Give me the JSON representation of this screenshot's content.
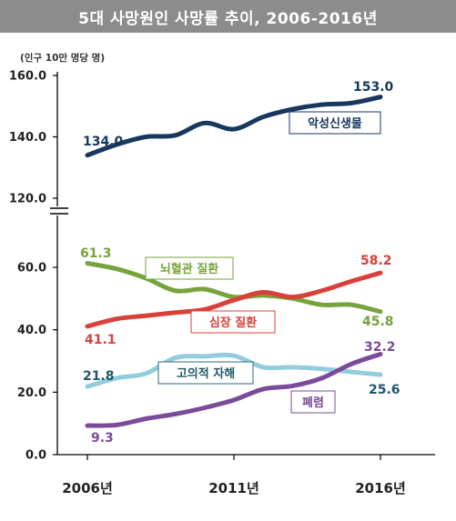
{
  "title": "5대 사망원인 사망률 추이, 2006-2016년",
  "chart_data": {
    "type": "line",
    "title": "5대 사망원인 사망률 추이, 2006-2016년",
    "ylabel": "(인구 10만 명당 명)",
    "x": [
      2006,
      2007,
      2008,
      2009,
      2010,
      2011,
      2012,
      2013,
      2014,
      2015,
      2016
    ],
    "x_tick_labels": [
      "2006년",
      "2011년",
      "2016년"
    ],
    "y_tick_labels": [
      "0.0",
      "20.0",
      "40.0",
      "60.0",
      "120.0",
      "140.0",
      "160.0"
    ],
    "axis_break": [
      65,
      120
    ],
    "ylim": [
      0,
      160
    ],
    "grid": false,
    "series": [
      {
        "name": "악성신생물",
        "color": "#17375e",
        "values": [
          134.0,
          137.5,
          140.0,
          140.5,
          144.5,
          142.5,
          146.5,
          149.0,
          150.5,
          151.0,
          153.0
        ],
        "start_label": "134.0",
        "end_label": "153.0"
      },
      {
        "name": "뇌혈관 질환",
        "color": "#76a33c",
        "values": [
          61.3,
          59.5,
          56.5,
          52.5,
          53.0,
          50.5,
          51.0,
          50.0,
          48.0,
          48.0,
          45.8
        ],
        "start_label": "61.3",
        "end_label": "45.8"
      },
      {
        "name": "심장 질환",
        "color": "#d9403a",
        "values": [
          41.1,
          43.5,
          44.5,
          45.5,
          46.5,
          49.5,
          52.0,
          50.5,
          52.5,
          55.5,
          58.2
        ],
        "start_label": "41.1",
        "end_label": "58.2"
      },
      {
        "name": "고의적 자해",
        "color": "#93cddd",
        "values": [
          21.8,
          24.5,
          26.0,
          31.0,
          31.5,
          31.7,
          28.0,
          28.0,
          27.5,
          26.5,
          25.6
        ],
        "start_label": "21.8",
        "end_label": "25.6"
      },
      {
        "name": "폐렴",
        "color": "#7b4b9a",
        "values": [
          9.3,
          9.5,
          11.5,
          13.0,
          15.0,
          17.5,
          21.0,
          22.0,
          24.5,
          29.0,
          32.2
        ],
        "start_label": "9.3",
        "end_label": "32.2"
      }
    ]
  }
}
